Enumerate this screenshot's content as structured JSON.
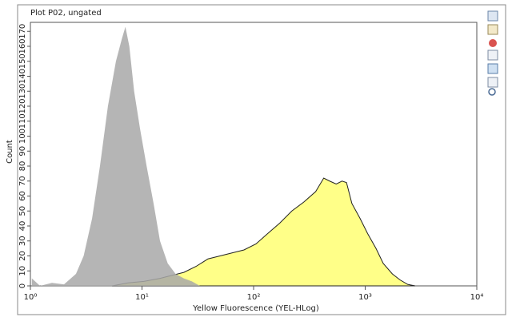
{
  "chart_data": {
    "type": "area",
    "title": "Plot P02, ungated",
    "xlabel": "Yellow Fluorescence (YEL-HLog)",
    "ylabel": "Count",
    "log_x": true,
    "xlim": [
      1,
      10000
    ],
    "xticks": [
      {
        "value": 1,
        "label": "10⁰"
      },
      {
        "value": 10,
        "label": "10¹"
      },
      {
        "value": 100,
        "label": "10²"
      },
      {
        "value": 1000,
        "label": "10³"
      },
      {
        "value": 10000,
        "label": "10⁴"
      }
    ],
    "ylim": [
      0,
      176
    ],
    "yticks": [
      0,
      10,
      20,
      30,
      40,
      50,
      60,
      70,
      80,
      90,
      100,
      110,
      120,
      130,
      140,
      150,
      160,
      170
    ],
    "series": [
      {
        "color": "#ffff88",
        "edgecolor": "#222222",
        "x": [
          5.4,
          7.5,
          10.4,
          14.5,
          18.5,
          23.7,
          30.5,
          39,
          50,
          64,
          82,
          105,
          134,
          172,
          220,
          282,
          360,
          425,
          480,
          550,
          620,
          680,
          760,
          900,
          1050,
          1250,
          1450,
          1750,
          2050,
          2400,
          2800
        ],
        "values": [
          0,
          2,
          3,
          5,
          7,
          9,
          13,
          18,
          20,
          22,
          24,
          28,
          35,
          42,
          50,
          56,
          63,
          72,
          70,
          68,
          70,
          69,
          55,
          45,
          35,
          25,
          15,
          8,
          4,
          1,
          0
        ]
      },
      {
        "color": "#a8a8a8",
        "alpha": 0.85,
        "x": [
          1.03,
          1.22,
          1.56,
          2.0,
          2.56,
          3.0,
          3.57,
          4.2,
          4.95,
          5.84,
          6.6,
          7.1,
          7.7,
          8.5,
          9.6,
          11,
          12.7,
          14.5,
          17,
          20,
          23.7,
          28,
          33
        ],
        "values": [
          5,
          0,
          2,
          1,
          8,
          20,
          45,
          80,
          120,
          150,
          165,
          173,
          160,
          130,
          105,
          80,
          55,
          30,
          15,
          8,
          5,
          3,
          0
        ]
      }
    ]
  }
}
